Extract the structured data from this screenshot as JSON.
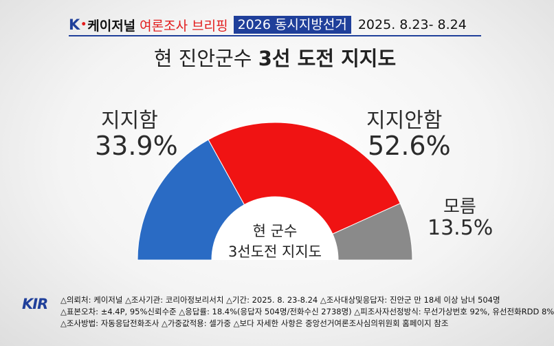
{
  "header": {
    "brand_k": "K",
    "brand_dot": "•",
    "brand_name": "케이저널",
    "briefing": "여론조사 브리핑",
    "election_tag": "2026 동시지방선거",
    "date": "2025. 8.23- 8.24"
  },
  "title": {
    "prefix": "현 진안군수",
    "main": "3선 도전 지지도"
  },
  "center_label": {
    "line1": "현 군수",
    "line2": "3선도전 지지도"
  },
  "chart_data": {
    "type": "pie",
    "variant": "half-donut",
    "title": "현 진안군수 3선 도전 지지도",
    "series": [
      {
        "name": "지지함",
        "value": 33.9,
        "label": "33.9%",
        "color": "#2a6bc4"
      },
      {
        "name": "지지안함",
        "value": 52.6,
        "label": "52.6%",
        "color": "#f01313"
      },
      {
        "name": "모름",
        "value": 13.5,
        "label": "13.5%",
        "color": "#8a8a8a"
      }
    ]
  },
  "footer": {
    "logo": "KIR",
    "line1": "△의뢰처: 케이저널 △조사기관: 코리아정보리서치 △기간: 2025. 8. 23-8.24 △조사대상및응답자: 진안군 만 18세 이상 남녀 504명",
    "line2": "△표본오차: ±4.4P, 95%신뢰수준 △응답률: 18.4%(응답자 504명/전화수신 2738명) △피조사자선정방식: 무선가상번호 92%, 유선전화RDD 8%",
    "line3": "△조사방법: 자동응답전화조사 △가중값적용: 셀가중 △보다 자세한 사항은 중앙선거여론조사심의위원회 홈페이지 참조"
  }
}
